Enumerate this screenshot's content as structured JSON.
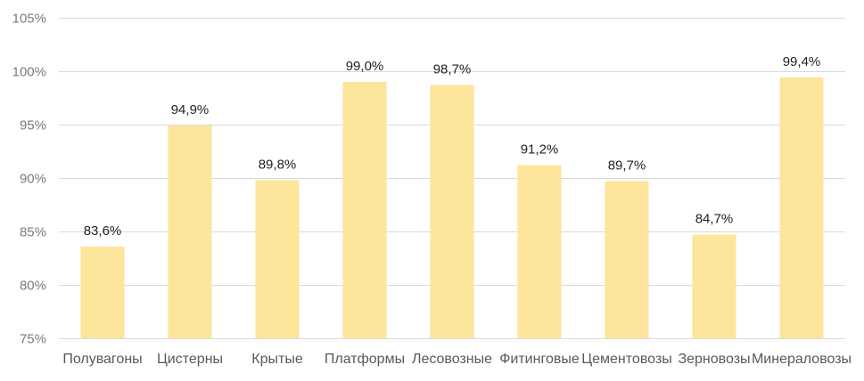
{
  "chart_data": {
    "type": "bar",
    "categories": [
      "Полувагоны",
      "Цистерны",
      "Крытые",
      "Платформы",
      "Лесовозные",
      "Фитинговые",
      "Цементовозы",
      "Зерновозы",
      "Минераловозы"
    ],
    "values": [
      83.6,
      94.9,
      89.8,
      99.0,
      98.7,
      91.2,
      89.7,
      84.7,
      99.4
    ],
    "data_labels": [
      "83,6%",
      "94,9%",
      "89,8%",
      "99,0%",
      "98,7%",
      "91,2%",
      "89,7%",
      "84,7%",
      "99,4%"
    ],
    "y_ticks": [
      75,
      80,
      85,
      90,
      95,
      100,
      105
    ],
    "y_tick_labels": [
      "75%",
      "80%",
      "85%",
      "90%",
      "95%",
      "100%",
      "105%"
    ],
    "ylim": [
      75,
      105
    ],
    "grid": true,
    "legend": "none",
    "bar_color": "#FDE59B",
    "grid_color": "#D9D9D9"
  }
}
